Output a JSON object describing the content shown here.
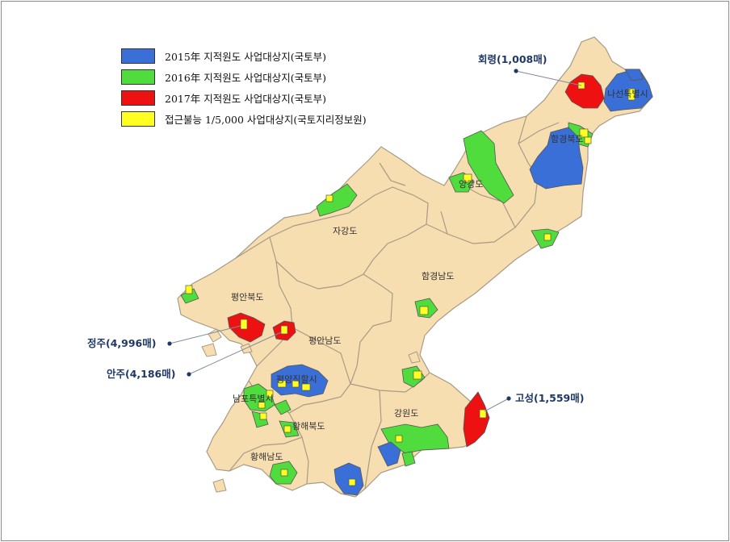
{
  "colors": {
    "background_land": "#f7deb0",
    "border": "#a89a86",
    "survey_2015": "#3a6fd8",
    "survey_2016": "#4fdc3c",
    "survey_2017": "#ee1111",
    "inaccessible": "#ffff22",
    "callout": "#1f3864"
  },
  "legend": [
    {
      "label": "2015年 지적원도 사업대상지(국토부)",
      "color": "#3a6fd8"
    },
    {
      "label": "2016年 지적원도 사업대상지(국토부)",
      "color": "#4fdc3c"
    },
    {
      "label": "2017年 지적원도 사업대상지(국토부)",
      "color": "#ee1111"
    },
    {
      "label": "접근불능 1/5,000 사업대상지(국토지리정보원)",
      "color": "#ffff22"
    }
  ],
  "regions": {
    "jagang": "자강도",
    "pyeongbuk": "평안북도",
    "pyeongnam": "평안남도",
    "hamnam": "함경남도",
    "yanggang": "양강도",
    "hambuk": "함경북도",
    "rason": "나선특별시",
    "pyongyang": "평양직할시",
    "nampo": "남포특별시",
    "hwangbuk": "황해북도",
    "hwangnam": "황해남도",
    "gangwon": "강원도"
  },
  "callouts": {
    "hoeryong": "회령(1,008매)",
    "jeongju": "정주(4,996매)",
    "anju": "안주(4,186매)",
    "goseong": "고성(1,559매)"
  }
}
